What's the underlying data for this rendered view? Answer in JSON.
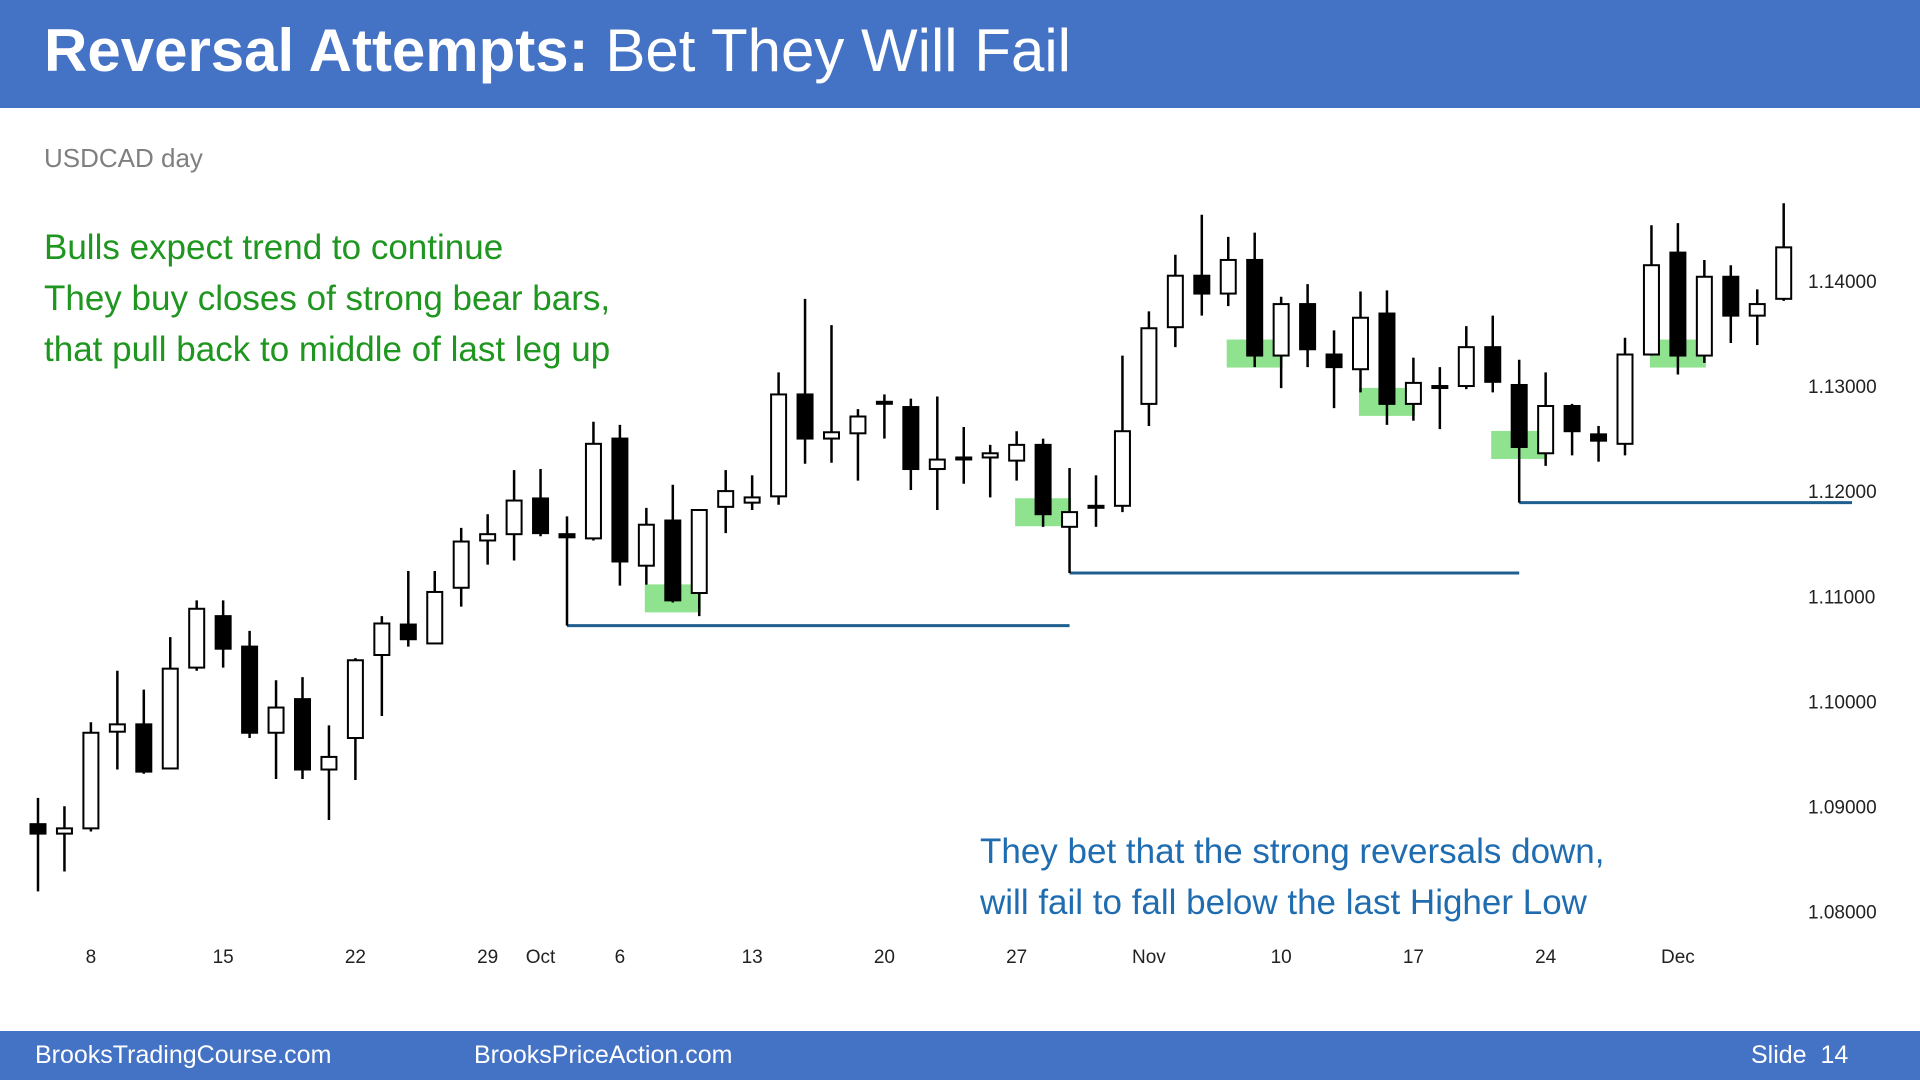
{
  "header": {
    "title_bold": "Reversal Attempts:",
    "title_regular": "Bet They Will Fail"
  },
  "footer": {
    "left": "BrooksTradingCourse.com",
    "middle": "BrooksPriceAction.com",
    "right": "Slide  14"
  },
  "chart_data": {
    "type": "candlestick",
    "subtitle": "USDCAD day",
    "categories": [
      null,
      null,
      "8",
      null,
      null,
      null,
      null,
      "15",
      null,
      null,
      null,
      null,
      "22",
      null,
      null,
      null,
      null,
      "29",
      null,
      "Oct",
      null,
      null,
      "6",
      null,
      null,
      null,
      null,
      "13",
      null,
      null,
      null,
      null,
      "20",
      null,
      null,
      null,
      null,
      "27",
      null,
      null,
      null,
      null,
      "Nov",
      null,
      null,
      null,
      null,
      "10",
      null,
      null,
      null,
      null,
      "17",
      null,
      null,
      null,
      null,
      "24",
      null,
      null,
      null,
      null,
      "Dec",
      null,
      null,
      null,
      null
    ],
    "open": [
      1.0885,
      1.0876,
      1.0881,
      1.0973,
      1.098,
      1.0938,
      1.1034,
      1.1083,
      1.1054,
      1.0972,
      1.1004,
      1.0937,
      1.0967,
      1.1046,
      1.1075,
      1.1057,
      1.111,
      1.1155,
      1.1161,
      1.1195,
      1.1161,
      1.1157,
      1.1252,
      1.1131,
      1.1174,
      1.1105,
      1.1187,
      1.1191,
      1.1197,
      1.1294,
      1.1252,
      1.1257,
      1.1286,
      1.1282,
      1.1223,
      1.1233,
      1.1234,
      1.1231,
      1.1246,
      1.1168,
      1.1187,
      1.1188,
      1.1285,
      1.1358,
      1.1407,
      1.139,
      1.1422,
      1.1331,
      1.138,
      1.1332,
      1.1318,
      1.1371,
      1.1285,
      1.1302,
      1.1302,
      1.1339,
      1.1303,
      1.1238,
      1.1283,
      1.1256,
      1.1247,
      1.1332,
      1.1429,
      1.1331,
      1.1406,
      1.1369,
      1.1385
    ],
    "high": [
      1.091,
      1.0902,
      1.0982,
      1.1031,
      1.1013,
      1.1063,
      1.1098,
      1.1098,
      1.1069,
      1.1022,
      1.1025,
      1.0979,
      1.1043,
      1.1083,
      1.1126,
      1.1126,
      1.1167,
      1.118,
      1.1222,
      1.1223,
      1.1178,
      1.1268,
      1.1265,
      1.1186,
      1.1208,
      1.1184,
      1.1222,
      1.1217,
      1.1315,
      1.1385,
      1.136,
      1.128,
      1.1294,
      1.129,
      1.1292,
      1.1263,
      1.1246,
      1.1259,
      1.1252,
      1.1224,
      1.1217,
      1.1331,
      1.1373,
      1.1427,
      1.1465,
      1.1444,
      1.1448,
      1.1387,
      1.1399,
      1.1355,
      1.1392,
      1.1393,
      1.1329,
      1.132,
      1.1359,
      1.1369,
      1.1327,
      1.1315,
      1.1285,
      1.1264,
      1.1348,
      1.1455,
      1.1457,
      1.1422,
      1.1417,
      1.1394,
      1.1476
    ],
    "low": [
      1.0821,
      1.084,
      1.0878,
      1.0937,
      1.0933,
      1.0937,
      1.1031,
      1.1034,
      1.0967,
      1.0928,
      1.0928,
      1.0889,
      1.0927,
      1.0988,
      1.1054,
      1.1057,
      1.1092,
      1.1132,
      1.1136,
      1.1159,
      1.1074,
      1.1155,
      1.1112,
      1.1113,
      1.1096,
      1.1083,
      1.1162,
      1.1184,
      1.1189,
      1.1228,
      1.1229,
      1.1212,
      1.1252,
      1.1203,
      1.1184,
      1.1209,
      1.1196,
      1.1212,
      1.1168,
      1.1124,
      1.1168,
      1.1182,
      1.1264,
      1.1339,
      1.1369,
      1.1378,
      1.132,
      1.13,
      1.132,
      1.1281,
      1.1296,
      1.1265,
      1.1269,
      1.1261,
      1.1299,
      1.1296,
      1.1191,
      1.1226,
      1.1236,
      1.123,
      1.1236,
      1.1331,
      1.1313,
      1.1324,
      1.1343,
      1.1341,
      1.1383
    ],
    "close": [
      1.0876,
      1.0881,
      1.0972,
      1.098,
      1.0935,
      1.1033,
      1.109,
      1.1052,
      1.0972,
      1.0996,
      1.0937,
      1.0949,
      1.1041,
      1.1076,
      1.1061,
      1.1106,
      1.1154,
      1.1161,
      1.1193,
      1.1162,
      1.1158,
      1.1247,
      1.1135,
      1.117,
      1.1098,
      1.1184,
      1.1202,
      1.1196,
      1.1294,
      1.1252,
      1.1258,
      1.1273,
      1.1287,
      1.1223,
      1.1232,
      1.1234,
      1.1238,
      1.1246,
      1.118,
      1.1182,
      1.1188,
      1.1259,
      1.1357,
      1.1407,
      1.139,
      1.1422,
      1.1331,
      1.138,
      1.1337,
      1.132,
      1.1367,
      1.1285,
      1.1305,
      1.1302,
      1.1339,
      1.1306,
      1.1244,
      1.1283,
      1.1259,
      1.125,
      1.1332,
      1.1417,
      1.1331,
      1.1406,
      1.1369,
      1.138,
      1.1434
    ],
    "up_color": "#ffffff",
    "down_color": "#000000",
    "ylim": [
      1.075,
      1.15
    ],
    "yticks": [
      {
        "value": 1.08,
        "label": "1.08000"
      },
      {
        "value": 1.09,
        "label": "1.09000"
      },
      {
        "value": 1.1,
        "label": "1.10000"
      },
      {
        "value": 1.11,
        "label": "1.11000"
      },
      {
        "value": 1.12,
        "label": "1.12000"
      },
      {
        "value": 1.13,
        "label": "1.13000"
      },
      {
        "value": 1.14,
        "label": "1.14000"
      }
    ],
    "support_lines": [
      {
        "value": 1.1074,
        "from_bar": 20
      },
      {
        "value": 1.1124,
        "from_bar": 39
      },
      {
        "value": 1.1191,
        "from_bar": 56
      }
    ],
    "support_color": "#1f5f8f",
    "highlights": [
      24,
      38,
      46,
      51,
      56,
      62
    ],
    "highlight_color": "#33cc33",
    "annotations": [
      {
        "lines": [
          "Bulls expect trend to continue",
          "They buy closes of strong bear bars,",
          "that pull back to middle of last leg up"
        ],
        "color": "#1f961f"
      },
      {
        "lines": [
          "They bet that the strong reversals down,",
          "will fail to fall below the last Higher Low"
        ],
        "color": "#1f6db0"
      }
    ]
  }
}
